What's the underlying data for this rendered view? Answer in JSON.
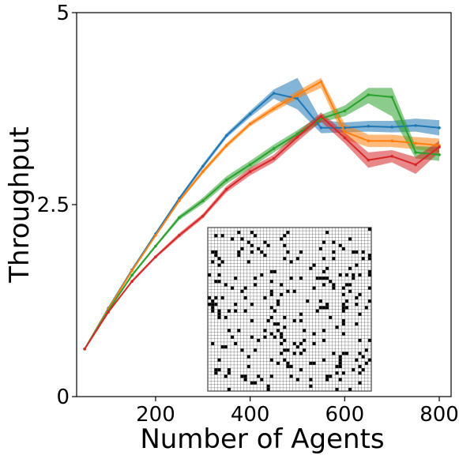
{
  "chart_data": {
    "type": "line",
    "xlabel": "Number of Agents",
    "ylabel": "Throughput",
    "xlim": [
      33,
      825
    ],
    "ylim": [
      0,
      5
    ],
    "x_ticks": [
      200,
      400,
      600,
      800
    ],
    "y_ticks": [
      {
        "value": 0,
        "label": "0"
      },
      {
        "value": 2.5,
        "label": "2.5"
      },
      {
        "value": 5,
        "label": "5"
      }
    ],
    "grid": false,
    "legend": "none",
    "x": [
      50,
      100,
      150,
      200,
      250,
      300,
      350,
      400,
      450,
      500,
      550,
      600,
      650,
      700,
      750,
      800
    ],
    "series": [
      {
        "color": "#1f77b4",
        "values": [
          0.62,
          1.15,
          1.65,
          2.12,
          2.58,
          3.0,
          3.4,
          3.68,
          3.95,
          3.88,
          3.5,
          3.5,
          3.52,
          3.51,
          3.53,
          3.5
        ],
        "lower": [
          0.61,
          1.14,
          1.63,
          2.1,
          2.56,
          2.97,
          3.37,
          3.64,
          3.88,
          3.74,
          3.43,
          3.44,
          3.45,
          3.44,
          3.45,
          3.4
        ],
        "upper": [
          0.63,
          1.16,
          1.67,
          2.14,
          2.6,
          3.03,
          3.43,
          3.72,
          4.0,
          4.15,
          3.6,
          3.57,
          3.59,
          3.59,
          3.62,
          3.6
        ]
      },
      {
        "color": "#ff7f0e",
        "values": [
          0.62,
          1.14,
          1.64,
          2.1,
          2.55,
          2.93,
          3.27,
          3.55,
          3.75,
          3.93,
          4.1,
          3.45,
          3.33,
          3.33,
          3.3,
          3.27
        ],
        "lower": [
          0.61,
          1.13,
          1.62,
          2.08,
          2.53,
          2.9,
          3.24,
          3.52,
          3.71,
          3.88,
          4.02,
          3.35,
          3.25,
          3.25,
          3.22,
          3.18
        ],
        "upper": [
          0.63,
          1.15,
          1.66,
          2.12,
          2.57,
          2.96,
          3.3,
          3.58,
          3.79,
          3.98,
          4.15,
          3.55,
          3.41,
          3.41,
          3.38,
          3.36
        ]
      },
      {
        "color": "#2ca02c",
        "values": [
          0.62,
          1.12,
          1.58,
          1.96,
          2.33,
          2.55,
          2.82,
          3.02,
          3.23,
          3.42,
          3.62,
          3.72,
          3.93,
          3.9,
          3.18,
          3.15
        ],
        "lower": [
          0.61,
          1.11,
          1.56,
          1.94,
          2.3,
          2.51,
          2.77,
          2.97,
          3.18,
          3.37,
          3.57,
          3.65,
          3.82,
          3.65,
          3.1,
          3.07
        ],
        "upper": [
          0.63,
          1.13,
          1.6,
          1.98,
          2.36,
          2.59,
          2.87,
          3.07,
          3.28,
          3.47,
          3.67,
          3.79,
          4.02,
          4.02,
          3.26,
          3.25
        ]
      },
      {
        "color": "#d62728",
        "values": [
          0.62,
          1.1,
          1.5,
          1.82,
          2.1,
          2.35,
          2.7,
          2.93,
          3.1,
          3.38,
          3.65,
          3.37,
          3.08,
          3.13,
          3.02,
          3.25
        ],
        "lower": [
          0.61,
          1.09,
          1.48,
          1.8,
          2.07,
          2.32,
          2.66,
          2.88,
          3.05,
          3.32,
          3.58,
          3.3,
          2.98,
          3.05,
          2.9,
          3.18
        ],
        "upper": [
          0.63,
          1.11,
          1.52,
          1.84,
          2.13,
          2.38,
          2.74,
          2.98,
          3.15,
          3.44,
          3.7,
          3.44,
          3.18,
          3.21,
          3.12,
          3.33
        ]
      }
    ],
    "inset": {
      "type": "grid-map",
      "rows": 50,
      "cols": 50,
      "obstacle_fraction": 0.1
    }
  }
}
